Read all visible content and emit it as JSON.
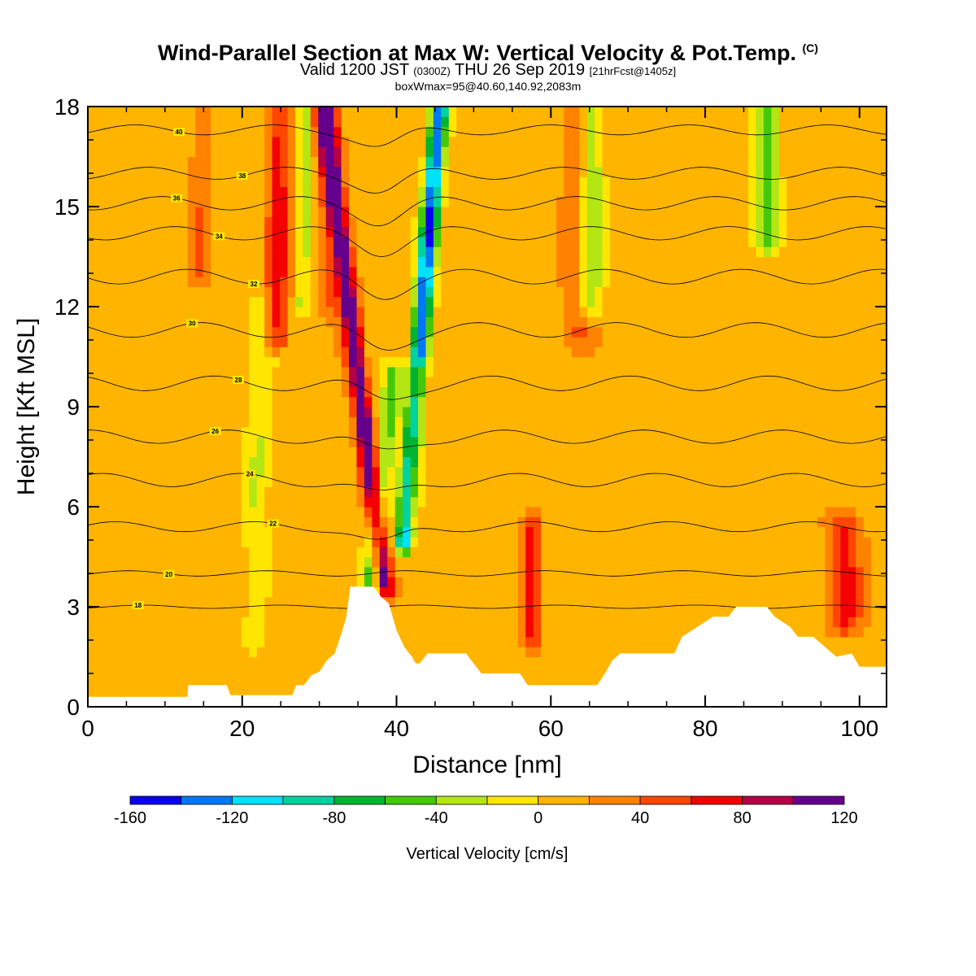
{
  "header": {
    "title": "Wind-Parallel Section at Max W: Vertical Velocity & Pot.Temp.",
    "title_mark": "(C)",
    "valid_prefix": "Valid 1200 JST",
    "valid_zulu": "(0300Z)",
    "valid_date": "THU 26 Sep 2019",
    "forecast": "[21hrFcst@1405z]",
    "box_info": "boxWmax=95@40.60,140.92,2083m"
  },
  "chart_data": {
    "type": "heatmap",
    "xlabel": "Distance [nm]",
    "ylabel": "Height [Kft MSL]",
    "xlim": [
      0,
      103.5
    ],
    "ylim": [
      0,
      18
    ],
    "xticks": [
      0,
      20,
      40,
      60,
      80,
      100
    ],
    "yticks": [
      0,
      3,
      6,
      9,
      12,
      15,
      18
    ],
    "background_level": 10,
    "field_features": [
      {
        "kind": "updraft",
        "x": 38.5,
        "x_slope": -0.55,
        "z_min": 3.6,
        "z_max": 18,
        "width": 1.2,
        "value": 115
      },
      {
        "kind": "downdraft",
        "x": 41.0,
        "x_slope": 0.35,
        "z_min": 5.0,
        "z_max": 18,
        "width": 1.1,
        "value": -150
      },
      {
        "kind": "updraft",
        "x": 41.5,
        "x_slope": 0.3,
        "z_min": 5.5,
        "z_max": 10,
        "width": 0.9,
        "value": 60
      },
      {
        "kind": "downdraft",
        "x": 36.5,
        "x_slope": 0.5,
        "z_min": 3.5,
        "z_max": 10,
        "width": 1.3,
        "value": -60
      },
      {
        "kind": "updraft",
        "x": 24.5,
        "x_slope": 0.05,
        "z_min": 11,
        "z_max": 18,
        "width": 1.5,
        "value": 60
      },
      {
        "kind": "downdraft",
        "x": 21.5,
        "x_slope": 0.1,
        "z_min": 2,
        "z_max": 12,
        "width": 1.5,
        "value": -30
      },
      {
        "kind": "downdraft",
        "x": 27.8,
        "x_slope": 0.05,
        "z_min": 12,
        "z_max": 18,
        "width": 1.0,
        "value": -40
      },
      {
        "kind": "updraft",
        "x": 63.5,
        "x_slope": 0.0,
        "z_min": 11,
        "z_max": 18,
        "width": 2.0,
        "value": 30
      },
      {
        "kind": "downdraft",
        "x": 65.0,
        "x_slope": 0.05,
        "z_min": 12,
        "z_max": 18,
        "width": 1.6,
        "value": -55
      },
      {
        "kind": "downdraft",
        "x": 88.0,
        "x_slope": 0.0,
        "z_min": 14,
        "z_max": 18,
        "width": 1.6,
        "value": -60
      },
      {
        "kind": "updraft",
        "x": 57.5,
        "x_slope": 0.0,
        "z_min": 2,
        "z_max": 5.5,
        "width": 1.2,
        "value": 55
      },
      {
        "kind": "updraft",
        "x": 98.0,
        "x_slope": 0.0,
        "z_min": 2.5,
        "z_max": 5.5,
        "width": 2.2,
        "value": 55
      },
      {
        "kind": "updraft",
        "x": 14.5,
        "x_slope": 0.0,
        "z_min": 13,
        "z_max": 18,
        "width": 1.5,
        "value": 25
      },
      {
        "kind": "updraft",
        "x": 31.5,
        "x_slope": -0.1,
        "z_min": 12,
        "z_max": 18,
        "width": 1.5,
        "value": 30
      }
    ],
    "terrain": [
      [
        0,
        0.3
      ],
      [
        12.9,
        0.3
      ],
      [
        13,
        0.65
      ],
      [
        18,
        0.65
      ],
      [
        18.5,
        0.35
      ],
      [
        26.5,
        0.35
      ],
      [
        27,
        0.65
      ],
      [
        28,
        0.65
      ],
      [
        29,
        0.95
      ],
      [
        30,
        1.05
      ],
      [
        31,
        1.4
      ],
      [
        32,
        1.6
      ],
      [
        33,
        2.3
      ],
      [
        33.5,
        2.7
      ],
      [
        34,
        3.6
      ],
      [
        37,
        3.6
      ],
      [
        38,
        3.3
      ],
      [
        39,
        3.1
      ],
      [
        40,
        2.3
      ],
      [
        41,
        1.8
      ],
      [
        42,
        1.5
      ],
      [
        42.5,
        1.3
      ],
      [
        43,
        1.3
      ],
      [
        44,
        1.6
      ],
      [
        49,
        1.6
      ],
      [
        50,
        1.3
      ],
      [
        51,
        1.0
      ],
      [
        56,
        1.0
      ],
      [
        57,
        0.65
      ],
      [
        66,
        0.65
      ],
      [
        67,
        1.0
      ],
      [
        68,
        1.4
      ],
      [
        69,
        1.6
      ],
      [
        76,
        1.6
      ],
      [
        77,
        2.1
      ],
      [
        79,
        2.4
      ],
      [
        81,
        2.7
      ],
      [
        83,
        2.7
      ],
      [
        84,
        3.0
      ],
      [
        88,
        3.0
      ],
      [
        89,
        2.7
      ],
      [
        91,
        2.4
      ],
      [
        92,
        2.1
      ],
      [
        94,
        2.1
      ],
      [
        95,
        1.9
      ],
      [
        97,
        1.5
      ],
      [
        99,
        1.6
      ],
      [
        100,
        1.2
      ],
      [
        103.5,
        1.2
      ]
    ],
    "theta_contours": [
      {
        "level": 18,
        "z0": 3.0,
        "amp": 0.05,
        "label_x": 6.5
      },
      {
        "level": 20,
        "z0": 4.0,
        "amp": 0.08,
        "label_x": 10.5
      },
      {
        "level": 22,
        "z0": 5.4,
        "amp": 0.15,
        "label_x": 24.0
      },
      {
        "level": 24,
        "z0": 6.8,
        "amp": 0.2,
        "label_x": 21.0
      },
      {
        "level": 26,
        "z0": 8.1,
        "amp": 0.2,
        "label_x": 16.5
      },
      {
        "level": 28,
        "z0": 9.7,
        "amp": 0.22,
        "label_x": 19.5
      },
      {
        "level": 30,
        "z0": 11.3,
        "amp": 0.22,
        "label_x": 13.5
      },
      {
        "level": 32,
        "z0": 12.9,
        "amp": 0.22,
        "label_x": 21.5
      },
      {
        "level": 34,
        "z0": 14.2,
        "amp": 0.2,
        "label_x": 17.0
      },
      {
        "level": 36,
        "z0": 15.1,
        "amp": 0.2,
        "label_x": 11.5
      },
      {
        "level": 38,
        "z0": 16.0,
        "amp": 0.18,
        "label_x": 20.0
      },
      {
        "level": 40,
        "z0": 17.3,
        "amp": 0.15,
        "label_x": 11.8
      }
    ],
    "colorbar": {
      "label": "Vertical Velocity [cm/s]",
      "boundaries": [
        -160,
        -140,
        -120,
        -100,
        -80,
        -60,
        -40,
        -20,
        0,
        20,
        40,
        60,
        80,
        100,
        120
      ],
      "tick_labels": [
        "-160",
        "-120",
        "-80",
        "-40",
        "0",
        "40",
        "80",
        "120"
      ],
      "tick_values": [
        -160,
        -120,
        -80,
        -40,
        0,
        40,
        80,
        120
      ],
      "colors": [
        "#0a00f0",
        "#0078f5",
        "#00e1fa",
        "#00d2a0",
        "#00b432",
        "#46c80a",
        "#b4e614",
        "#ffe600",
        "#ffb400",
        "#ff8200",
        "#ff4600",
        "#f50000",
        "#b40046",
        "#64008c"
      ]
    }
  }
}
